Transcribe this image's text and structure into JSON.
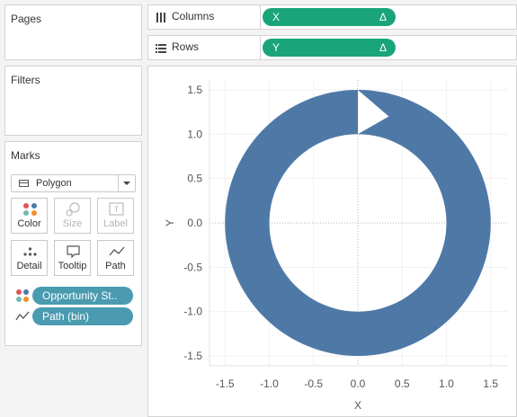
{
  "sidebar": {
    "pages_title": "Pages",
    "filters_title": "Filters",
    "marks_title": "Marks",
    "mark_type": "Polygon",
    "buttons": [
      {
        "label": "Color",
        "icon": "color-dots-icon",
        "enabled": true
      },
      {
        "label": "Size",
        "icon": "size-icon",
        "enabled": false
      },
      {
        "label": "Label",
        "icon": "label-icon",
        "enabled": false
      },
      {
        "label": "Detail",
        "icon": "detail-dots-icon",
        "enabled": true
      },
      {
        "label": "Tooltip",
        "icon": "tooltip-icon",
        "enabled": true
      },
      {
        "label": "Path",
        "icon": "path-icon",
        "enabled": true
      }
    ],
    "mark_fields": [
      {
        "label": "Opportunity St..",
        "icon": "color-dots-icon"
      },
      {
        "label": "Path (bin)",
        "icon": "path-icon"
      }
    ]
  },
  "shelves": {
    "columns": {
      "label": "Columns",
      "pill": "X",
      "delta": "Δ"
    },
    "rows": {
      "label": "Rows",
      "pill": "Y",
      "delta": "Δ"
    }
  },
  "colors": {
    "ring": "#4e79a7",
    "pill_green": "#1aa47a",
    "pill_teal": "#4a9bb0"
  },
  "chart_data": {
    "type": "polygon",
    "shape": "ring with arrow notch at top",
    "center": [
      0,
      0
    ],
    "outer_radius": 1.5,
    "inner_radius": 1.0,
    "arrow_notch_tip": [
      0.35,
      1.2
    ],
    "xlabel": "X",
    "ylabel": "Y",
    "xlim": [
      -1.65,
      1.65
    ],
    "ylim": [
      -1.6,
      1.6
    ],
    "xticks": [
      "-1.5",
      "-1.0",
      "-0.5",
      "0.0",
      "0.5",
      "1.0",
      "1.5"
    ],
    "yticks": [
      "1.5",
      "1.0",
      "0.5",
      "0.0",
      "-0.5",
      "-1.0",
      "-1.5"
    ],
    "grid": true
  }
}
